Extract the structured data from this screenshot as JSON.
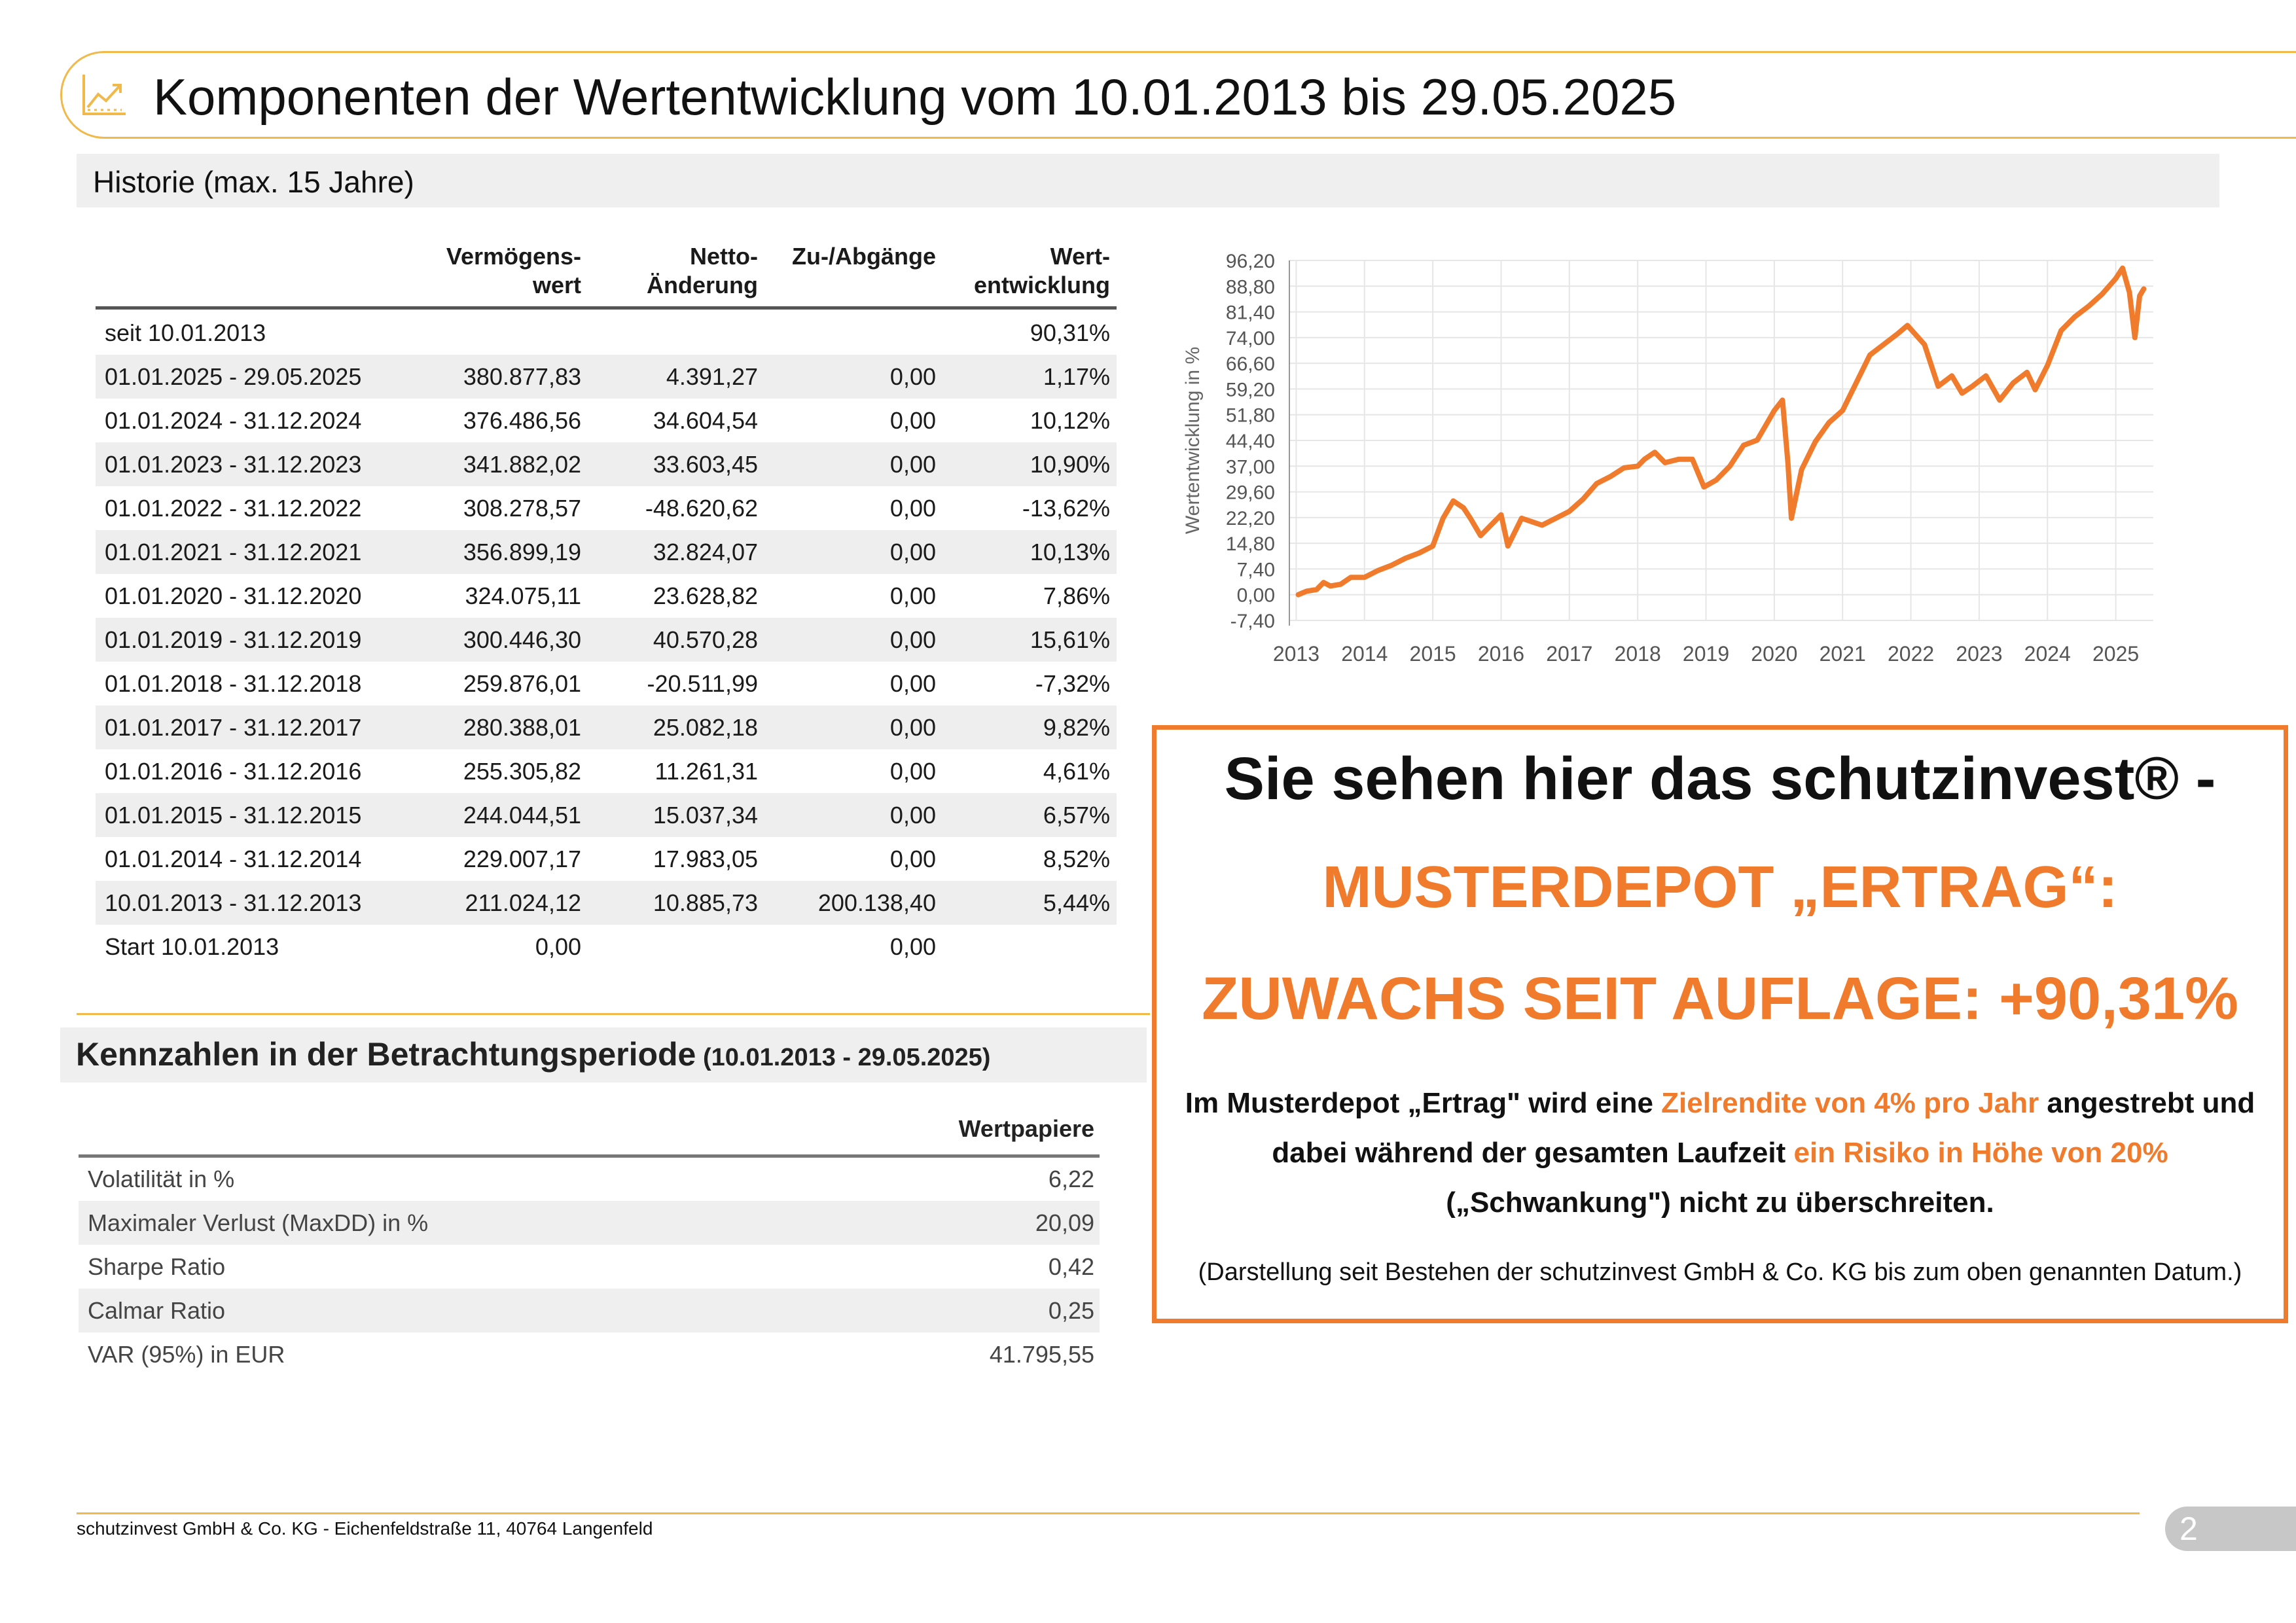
{
  "header": {
    "title": "Komponenten der Wertentwicklung vom 10.01.2013 bis 29.05.2025",
    "icon": "trend-chart-icon"
  },
  "historie": {
    "title": "Historie (max. 15 Jahre)",
    "columns": [
      "",
      "Vermögens-\nwert",
      "Netto-\nÄnderung",
      "Zu-/Abgänge",
      "Wert-\nentwicklung"
    ],
    "rows": [
      [
        "seit 10.01.2013",
        "",
        "",
        "",
        "90,31%"
      ],
      [
        "01.01.2025 - 29.05.2025",
        "380.877,83",
        "4.391,27",
        "0,00",
        "1,17%"
      ],
      [
        "01.01.2024 - 31.12.2024",
        "376.486,56",
        "34.604,54",
        "0,00",
        "10,12%"
      ],
      [
        "01.01.2023 - 31.12.2023",
        "341.882,02",
        "33.603,45",
        "0,00",
        "10,90%"
      ],
      [
        "01.01.2022 - 31.12.2022",
        "308.278,57",
        "-48.620,62",
        "0,00",
        "-13,62%"
      ],
      [
        "01.01.2021 - 31.12.2021",
        "356.899,19",
        "32.824,07",
        "0,00",
        "10,13%"
      ],
      [
        "01.01.2020 - 31.12.2020",
        "324.075,11",
        "23.628,82",
        "0,00",
        "7,86%"
      ],
      [
        "01.01.2019 - 31.12.2019",
        "300.446,30",
        "40.570,28",
        "0,00",
        "15,61%"
      ],
      [
        "01.01.2018 - 31.12.2018",
        "259.876,01",
        "-20.511,99",
        "0,00",
        "-7,32%"
      ],
      [
        "01.01.2017 - 31.12.2017",
        "280.388,01",
        "25.082,18",
        "0,00",
        "9,82%"
      ],
      [
        "01.01.2016 - 31.12.2016",
        "255.305,82",
        "11.261,31",
        "0,00",
        "4,61%"
      ],
      [
        "01.01.2015 - 31.12.2015",
        "244.044,51",
        "15.037,34",
        "0,00",
        "6,57%"
      ],
      [
        "01.01.2014 - 31.12.2014",
        "229.007,17",
        "17.983,05",
        "0,00",
        "8,52%"
      ],
      [
        "10.01.2013 - 31.12.2013",
        "211.024,12",
        "10.885,73",
        "200.138,40",
        "5,44%"
      ],
      [
        "Start 10.01.2013",
        "0,00",
        "",
        "0,00",
        ""
      ]
    ]
  },
  "kennzahlen": {
    "title": "Kennzahlen in der Betrachtungsperiode",
    "period": "(10.01.2013 - 29.05.2025)",
    "column": "Wertpapiere",
    "rows": [
      [
        "Volatilität in %",
        "6,22"
      ],
      [
        "Maximaler Verlust (MaxDD) in %",
        "20,09"
      ],
      [
        "Sharpe Ratio",
        "0,42"
      ],
      [
        "Calmar Ratio",
        "0,25"
      ],
      [
        "VAR (95%) in EUR",
        "41.795,55"
      ]
    ]
  },
  "chart_data": {
    "type": "line",
    "title": "",
    "xlabel": "",
    "ylabel": "Wertentwicklung in %",
    "ylim": [
      -7.4,
      96.2
    ],
    "yticks": [
      "96,20",
      "88,80",
      "81,40",
      "74,00",
      "66,60",
      "59,20",
      "51,80",
      "44,40",
      "37,00",
      "29,60",
      "22,20",
      "14,80",
      "7,40",
      "0,00",
      "-7,40"
    ],
    "xticks": [
      "2013",
      "2014",
      "2015",
      "2016",
      "2017",
      "2018",
      "2019",
      "2020",
      "2021",
      "2022",
      "2023",
      "2024",
      "2025"
    ],
    "grid": true,
    "color": "#f07b2c",
    "series": [
      {
        "x": [
          2013.03,
          2013.15,
          2013.3,
          2013.4,
          2013.5,
          2013.65,
          2013.8,
          2014.0,
          2014.2,
          2014.4,
          2014.6,
          2014.8,
          2015.0,
          2015.15,
          2015.3,
          2015.45,
          2015.55,
          2015.7,
          2015.85,
          2016.0,
          2016.1,
          2016.3,
          2016.45,
          2016.6,
          2016.8,
          2017.0,
          2017.2,
          2017.4,
          2017.6,
          2017.8,
          2018.0,
          2018.1,
          2018.25,
          2018.4,
          2018.6,
          2018.8,
          2018.97,
          2019.15,
          2019.35,
          2019.55,
          2019.75,
          2020.0,
          2020.12,
          2020.2,
          2020.25,
          2020.4,
          2020.6,
          2020.8,
          2021.0,
          2021.2,
          2021.4,
          2021.6,
          2021.8,
          2021.95,
          2022.2,
          2022.4,
          2022.6,
          2022.75,
          2022.9,
          2023.1,
          2023.3,
          2023.5,
          2023.7,
          2023.82,
          2024.0,
          2024.2,
          2024.4,
          2024.6,
          2024.8,
          2025.0,
          2025.1,
          2025.2,
          2025.28,
          2025.35,
          2025.41
        ],
        "y": [
          0.0,
          1.0,
          1.5,
          3.5,
          2.5,
          3.0,
          5.0,
          5.0,
          7.0,
          8.5,
          10.5,
          12.0,
          14.0,
          22.0,
          27.0,
          25.0,
          22.0,
          17.0,
          20.0,
          23.0,
          14.0,
          22.0,
          21.0,
          20.0,
          22.0,
          24.0,
          27.5,
          32.0,
          34.0,
          36.5,
          37.0,
          39.0,
          41.0,
          38.0,
          39.0,
          39.0,
          31.0,
          33.0,
          37.0,
          43.0,
          44.5,
          53.0,
          56.0,
          38.0,
          22.0,
          36.0,
          44.0,
          49.5,
          53.0,
          61.0,
          69.0,
          72.0,
          75.0,
          77.5,
          72.0,
          60.0,
          63.0,
          58.0,
          60.0,
          63.0,
          56.0,
          61.0,
          64.0,
          59.0,
          66.0,
          76.0,
          80.0,
          83.0,
          86.5,
          91.0,
          94.0,
          87.0,
          74.0,
          86.0,
          88.0
        ]
      }
    ]
  },
  "promo": {
    "line1": "Sie sehen hier das schutzinvest® -",
    "line2": "MUSTERDEPOT „ERTRAG“:",
    "line3": "ZUWACHS SEIT AUFLAGE: +90,31%",
    "body1_a": "Im Musterdepot „Ertrag\" wird eine ",
    "body1_b": "Zielrendite von 4% pro Jahr",
    "body1_c": " angestrebt und",
    "body2_a": "dabei während der gesamten Laufzeit ",
    "body2_b": "ein Risiko in Höhe von 20%",
    "body3": "(„Schwankung\") nicht zu überschreiten.",
    "note": "(Darstellung seit Bestehen der schutzinvest GmbH & Co. KG bis zum oben genannten Datum.)",
    "border_color": "#f07b2c"
  },
  "footer": {
    "text": "schutzinvest GmbH & Co. KG - Eichenfeldstraße 11, 40764 Langenfeld",
    "page": "2"
  }
}
